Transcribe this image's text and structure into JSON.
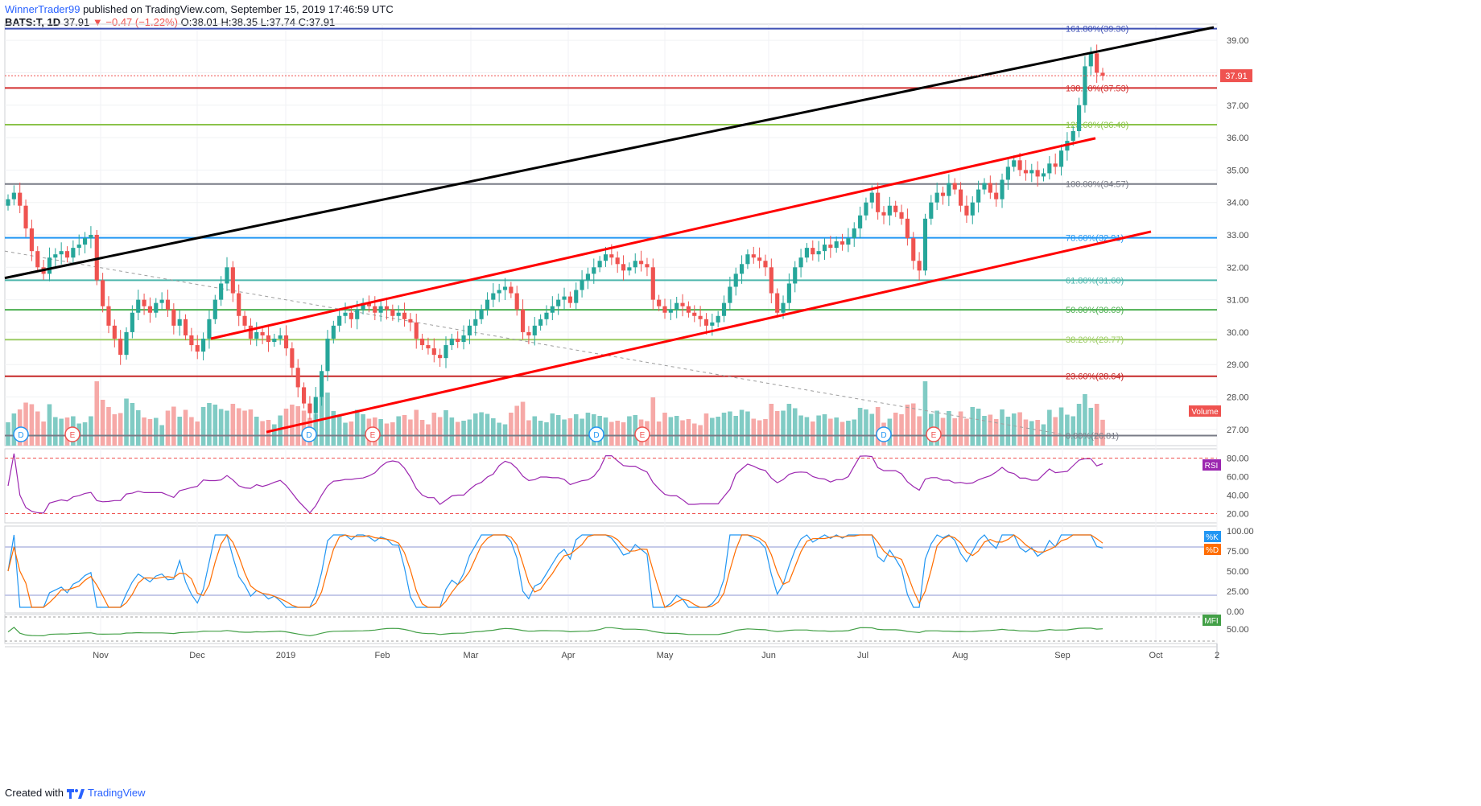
{
  "header": {
    "author": "WinnerTrader99",
    "published": "published on TradingView.com, September 15, 2019 17:46:59 UTC",
    "symbol": "BATS:T, 1D",
    "last": "37.91",
    "change": "▼ −0.47 (−1.22%)",
    "open": "O:38.01",
    "high": "H:38.35",
    "low": "L:37.74",
    "close": "C:37.91"
  },
  "footer": {
    "created_with": "Created with",
    "brand": "TradingView"
  },
  "colors": {
    "up": "#26a69a",
    "down": "#ef5350",
    "vol_up": "#80cbc4",
    "vol_down": "#f6a9a7",
    "fib_161": "#3f51b5",
    "fib_138": "#d32f2f",
    "fib_123": "#8bc34a",
    "fib_100": "#787b86",
    "fib_786": "#2196f3",
    "fib_618": "#4db6ac",
    "fib_50": "#4caf50",
    "fib_382": "#9ccc65",
    "fib_236": "#c62828",
    "fib_0": "#787b86",
    "trend_black": "#000000",
    "trend_red": "#ff0000",
    "rsi": "#9c27b0",
    "stoch_k": "#2196f3",
    "stoch_d": "#ff6d00",
    "mfi": "#43a047"
  },
  "chart_data": {
    "type": "candlestick",
    "price_axis": {
      "min": 26.5,
      "max": 39.5,
      "ticks": [
        "39.00",
        "38.00",
        "37.00",
        "36.00",
        "35.00",
        "34.00",
        "33.00",
        "32.00",
        "31.00",
        "30.00",
        "29.00",
        "28.00",
        "27.00"
      ]
    },
    "last_price_label": "37.91",
    "x_labels": [
      "Nov",
      "Dec",
      "2019",
      "Feb",
      "Mar",
      "Apr",
      "May",
      "Jun",
      "Jul",
      "Aug",
      "Sep",
      "Oct",
      "2"
    ],
    "closes": [
      34.1,
      34.3,
      33.9,
      33.2,
      32.5,
      32.0,
      31.8,
      32.3,
      32.4,
      32.5,
      32.3,
      32.6,
      32.7,
      32.9,
      33.0,
      31.6,
      30.8,
      30.2,
      29.8,
      29.3,
      30.0,
      30.6,
      31.0,
      30.8,
      30.6,
      30.9,
      31.0,
      30.7,
      30.2,
      30.4,
      29.9,
      29.6,
      29.4,
      29.8,
      30.4,
      31.0,
      31.5,
      32.0,
      31.2,
      30.5,
      30.2,
      29.8,
      30.0,
      29.9,
      29.7,
      29.8,
      29.9,
      29.5,
      28.9,
      28.3,
      27.8,
      27.5,
      28.0,
      28.8,
      29.8,
      30.2,
      30.5,
      30.6,
      30.4,
      30.7,
      30.9,
      30.8,
      30.6,
      30.8,
      30.7,
      30.5,
      30.6,
      30.4,
      30.3,
      29.8,
      29.6,
      29.5,
      29.3,
      29.2,
      29.6,
      29.8,
      29.7,
      29.9,
      30.2,
      30.4,
      30.7,
      31.0,
      31.2,
      31.3,
      31.4,
      31.2,
      30.7,
      30.0,
      29.9,
      30.2,
      30.4,
      30.6,
      30.8,
      31.0,
      31.1,
      30.9,
      31.3,
      31.6,
      31.8,
      32.0,
      32.2,
      32.4,
      32.3,
      32.1,
      31.9,
      32.0,
      32.2,
      32.1,
      32.0,
      31.0,
      30.8,
      30.6,
      30.7,
      30.9,
      30.8,
      30.6,
      30.5,
      30.4,
      30.2,
      30.3,
      30.5,
      30.9,
      31.4,
      31.8,
      32.1,
      32.4,
      32.3,
      32.2,
      32.0,
      31.2,
      30.6,
      30.9,
      31.5,
      32.0,
      32.3,
      32.6,
      32.4,
      32.5,
      32.7,
      32.6,
      32.8,
      32.7,
      32.9,
      33.2,
      33.6,
      34.0,
      34.3,
      33.7,
      33.6,
      33.9,
      33.7,
      33.5,
      32.9,
      32.2,
      31.9,
      33.5,
      34.0,
      34.3,
      34.2,
      34.6,
      34.4,
      33.9,
      33.6,
      34.0,
      34.4,
      34.6,
      34.3,
      34.1,
      34.7,
      35.1,
      35.3,
      35.0,
      34.9,
      35.0,
      34.8,
      34.9,
      35.2,
      35.1,
      35.6,
      35.9,
      36.2,
      37.0,
      38.2,
      38.6,
      38.0,
      37.91
    ],
    "fib_levels": [
      {
        "label": "161.80%(39.36)",
        "price": 39.36,
        "color_key": "fib_161"
      },
      {
        "label": "138.20%(37.53)",
        "price": 37.53,
        "color_key": "fib_138"
      },
      {
        "label": "123.60%(36.40)",
        "price": 36.4,
        "color_key": "fib_123"
      },
      {
        "label": "100.00%(34.57)",
        "price": 34.57,
        "color_key": "fib_100"
      },
      {
        "label": "78.60%(32.91)",
        "price": 32.91,
        "color_key": "fib_786"
      },
      {
        "label": "61.80%(31.60)",
        "price": 31.6,
        "color_key": "fib_618"
      },
      {
        "label": "50.00%(30.69)",
        "price": 30.69,
        "color_key": "fib_50"
      },
      {
        "label": "38.20%(29.77)",
        "price": 29.77,
        "color_key": "fib_382"
      },
      {
        "label": "23.60%(28.64)",
        "price": 28.64,
        "color_key": "fib_236"
      },
      {
        "label": "0.00%(26.81)",
        "price": 26.81,
        "color_key": "fib_0"
      }
    ],
    "event_markers": [
      "D",
      "E",
      "D",
      "E",
      "D",
      "E",
      "D",
      "E"
    ],
    "panes": {
      "volume": {
        "label": "Volume"
      },
      "rsi": {
        "label": "RSI",
        "ticks": [
          "80.00",
          "60.00",
          "40.00",
          "20.00"
        ],
        "bands": [
          80,
          20
        ]
      },
      "stoch": {
        "label_k": "%K",
        "label_d": "%D",
        "ticks": [
          "100.00",
          "75.00",
          "50.00",
          "25.00",
          "0.00"
        ],
        "bands": [
          80,
          20
        ]
      },
      "mfi": {
        "label": "MFI",
        "ticks": [
          "50.00"
        ]
      }
    }
  }
}
